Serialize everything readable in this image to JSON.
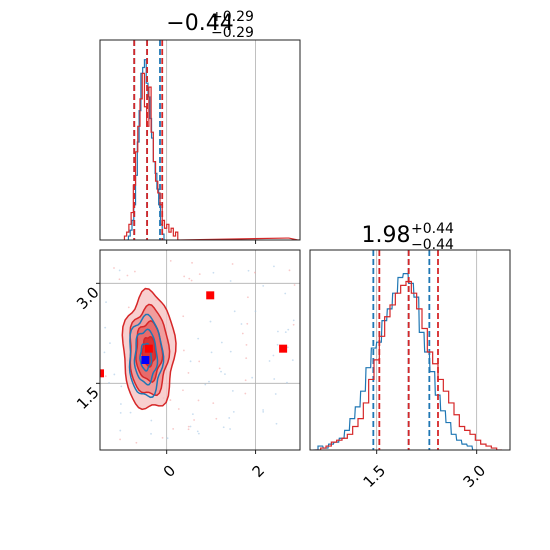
{
  "chart_data": [
    {
      "type": "histogram",
      "panel": "top-left marginal of parameter 1",
      "title": {
        "main": "−0.44",
        "sup": "+0.29",
        "sub": "−0.29"
      },
      "xlim": [
        -1.5,
        3.0
      ],
      "grid": true,
      "series": [
        {
          "name": "",
          "color": "#1f77b4",
          "quantiles": [
            -0.73,
            -0.44,
            -0.15
          ],
          "bins": [
            [
              -0.9,
              0.0
            ],
            [
              -0.86,
              0.02
            ],
            [
              -0.82,
              0.05
            ],
            [
              -0.78,
              0.1
            ],
            [
              -0.74,
              0.18
            ],
            [
              -0.7,
              0.33
            ],
            [
              -0.66,
              0.5
            ],
            [
              -0.62,
              0.66
            ],
            [
              -0.58,
              0.85
            ],
            [
              -0.54,
              0.88
            ],
            [
              -0.5,
              0.92
            ],
            [
              -0.46,
              0.8
            ],
            [
              -0.42,
              0.73
            ],
            [
              -0.38,
              0.62
            ],
            [
              -0.34,
              0.52
            ],
            [
              -0.3,
              0.4
            ],
            [
              -0.26,
              0.34
            ],
            [
              -0.22,
              0.26
            ],
            [
              -0.18,
              0.18
            ],
            [
              -0.14,
              0.08
            ],
            [
              -0.1,
              0.03
            ],
            [
              -0.06,
              0.0
            ]
          ]
        },
        {
          "name": "",
          "color": "#d62728",
          "quantiles": [
            -0.73,
            -0.44,
            -0.1
          ],
          "bins": [
            [
              -0.95,
              0.02
            ],
            [
              -0.9,
              0.04
            ],
            [
              -0.85,
              0.08
            ],
            [
              -0.8,
              0.14
            ],
            [
              -0.75,
              0.28
            ],
            [
              -0.7,
              0.45
            ],
            [
              -0.65,
              0.58
            ],
            [
              -0.6,
              0.72
            ],
            [
              -0.55,
              0.85
            ],
            [
              -0.5,
              0.68
            ],
            [
              -0.45,
              0.58
            ],
            [
              -0.4,
              0.78
            ],
            [
              -0.35,
              0.55
            ],
            [
              -0.3,
              0.4
            ],
            [
              -0.25,
              0.3
            ],
            [
              -0.2,
              0.24
            ],
            [
              -0.15,
              0.18
            ],
            [
              -0.1,
              0.1
            ],
            [
              -0.05,
              0.06
            ],
            [
              0.0,
              0.08
            ],
            [
              0.05,
              0.04
            ],
            [
              0.1,
              0.06
            ],
            [
              0.15,
              0.02
            ],
            [
              0.2,
              0.04
            ],
            [
              0.25,
              0.0
            ],
            [
              2.7,
              0.01
            ],
            [
              2.95,
              0.0
            ]
          ]
        }
      ]
    },
    {
      "type": "contour",
      "panel": "bottom-left joint of parameter 1 vs parameter 2",
      "xlim": [
        -1.5,
        3.0
      ],
      "ylim": [
        0.5,
        3.5
      ],
      "xticks": [
        {
          "value": 0,
          "label": "0"
        },
        {
          "value": 2,
          "label": "2"
        }
      ],
      "yticks": [
        {
          "value": 1.5,
          "label": "1.5"
        },
        {
          "value": 3.0,
          "label": "3.0"
        }
      ],
      "grid": true,
      "series": [
        {
          "name": "",
          "color": "#d62728",
          "center": [
            -0.4,
            1.98
          ],
          "sigma": [
            0.29,
            0.44
          ],
          "levels": [
            0.5,
            1.0,
            1.5,
            2.0
          ]
        },
        {
          "name": "",
          "color": "#1f77b4",
          "center": [
            -0.47,
            1.9
          ],
          "sigma": [
            0.25,
            0.4
          ],
          "levels": [
            0.5,
            1.0,
            1.5
          ]
        }
      ],
      "markers": [
        {
          "x": -0.4,
          "y": 2.02,
          "color": "#ff0000",
          "shape": "square"
        },
        {
          "x": 0.98,
          "y": 2.82,
          "color": "#ff0000",
          "shape": "square"
        },
        {
          "x": 2.62,
          "y": 2.02,
          "color": "#ff0000",
          "shape": "square"
        },
        {
          "x": -1.5,
          "y": 1.65,
          "color": "#ff0000",
          "shape": "square"
        },
        {
          "x": -0.48,
          "y": 1.85,
          "color": "#0000ff",
          "shape": "square"
        }
      ]
    },
    {
      "type": "histogram",
      "panel": "bottom-right marginal of parameter 2",
      "title": {
        "main": "1.98",
        "sup": "+0.44",
        "sub": "−0.44"
      },
      "xlim": [
        0.5,
        3.5
      ],
      "xticks": [
        {
          "value": 1.5,
          "label": "1.5"
        },
        {
          "value": 3.0,
          "label": "3.0"
        }
      ],
      "grid": true,
      "series": [
        {
          "name": "",
          "color": "#1f77b4",
          "quantiles": [
            1.45,
            1.98,
            2.29
          ],
          "bins": [
            [
              0.55,
              0.0
            ],
            [
              0.62,
              0.02
            ],
            [
              0.7,
              0.01
            ],
            [
              0.78,
              0.03
            ],
            [
              0.86,
              0.04
            ],
            [
              0.94,
              0.06
            ],
            [
              1.02,
              0.1
            ],
            [
              1.1,
              0.16
            ],
            [
              1.18,
              0.22
            ],
            [
              1.26,
              0.3
            ],
            [
              1.34,
              0.42
            ],
            [
              1.42,
              0.52
            ],
            [
              1.5,
              0.55
            ],
            [
              1.58,
              0.66
            ],
            [
              1.66,
              0.72
            ],
            [
              1.74,
              0.8
            ],
            [
              1.82,
              0.88
            ],
            [
              1.9,
              0.9
            ],
            [
              1.98,
              0.85
            ],
            [
              2.06,
              0.78
            ],
            [
              2.14,
              0.6
            ],
            [
              2.22,
              0.5
            ],
            [
              2.3,
              0.4
            ],
            [
              2.38,
              0.28
            ],
            [
              2.46,
              0.2
            ],
            [
              2.54,
              0.14
            ],
            [
              2.62,
              0.08
            ],
            [
              2.7,
              0.05
            ],
            [
              2.78,
              0.03
            ],
            [
              2.86,
              0.02
            ],
            [
              2.94,
              0.0
            ]
          ]
        },
        {
          "name": "",
          "color": "#d62728",
          "quantiles": [
            1.54,
            1.98,
            2.42
          ],
          "bins": [
            [
              0.58,
              0.0
            ],
            [
              0.66,
              0.01
            ],
            [
              0.74,
              0.02
            ],
            [
              0.82,
              0.04
            ],
            [
              0.9,
              0.05
            ],
            [
              0.98,
              0.06
            ],
            [
              1.06,
              0.08
            ],
            [
              1.14,
              0.12
            ],
            [
              1.22,
              0.16
            ],
            [
              1.3,
              0.24
            ],
            [
              1.38,
              0.36
            ],
            [
              1.46,
              0.46
            ],
            [
              1.54,
              0.58
            ],
            [
              1.62,
              0.68
            ],
            [
              1.7,
              0.74
            ],
            [
              1.78,
              0.8
            ],
            [
              1.86,
              0.84
            ],
            [
              1.94,
              0.86
            ],
            [
              2.02,
              0.8
            ],
            [
              2.1,
              0.72
            ],
            [
              2.18,
              0.62
            ],
            [
              2.26,
              0.5
            ],
            [
              2.34,
              0.44
            ],
            [
              2.42,
              0.36
            ],
            [
              2.5,
              0.3
            ],
            [
              2.58,
              0.24
            ],
            [
              2.66,
              0.18
            ],
            [
              2.74,
              0.12
            ],
            [
              2.82,
              0.1
            ],
            [
              2.9,
              0.08
            ],
            [
              2.98,
              0.05
            ],
            [
              3.06,
              0.03
            ],
            [
              3.14,
              0.02
            ],
            [
              3.22,
              0.01
            ],
            [
              3.3,
              0.0
            ]
          ]
        }
      ]
    }
  ]
}
